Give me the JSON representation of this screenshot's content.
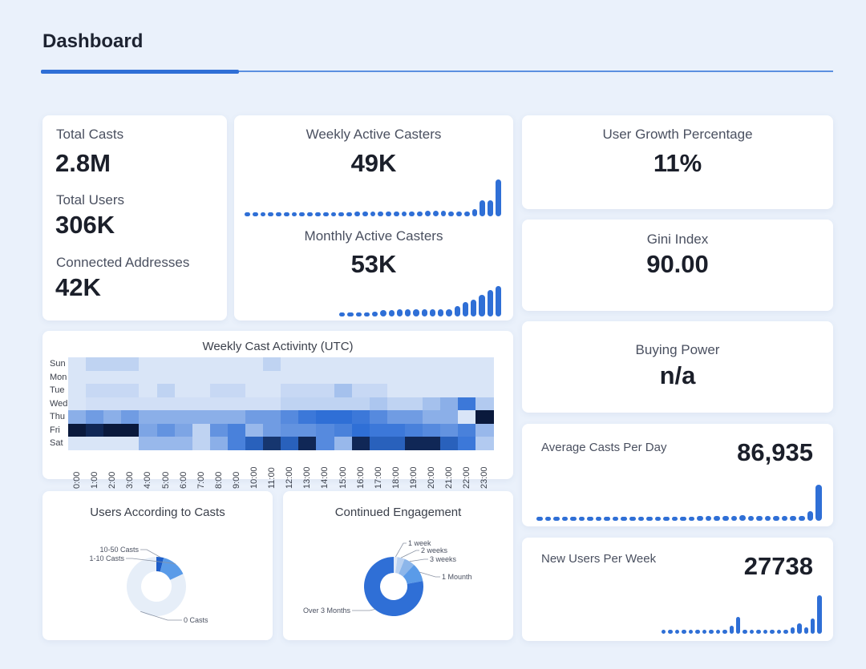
{
  "header": {
    "title": "Dashboard"
  },
  "totals": {
    "casts_label": "Total Casts",
    "casts_value": "2.8M",
    "users_label": "Total Users",
    "users_value": "306K",
    "addresses_label": "Connected Addresses",
    "addresses_value": "42K"
  },
  "wac": {
    "label": "Weekly Active Casters",
    "value": "49K",
    "trend": [
      4,
      4,
      4,
      4,
      4,
      4,
      4,
      4,
      4,
      4,
      4,
      4,
      4,
      5,
      6,
      6,
      6,
      6,
      6,
      6,
      6,
      6,
      6,
      7,
      7,
      7,
      6,
      6,
      6,
      9,
      20,
      20,
      46
    ]
  },
  "mac": {
    "label": "Monthly Active Casters",
    "value": "53K",
    "trend": [
      4,
      4,
      4,
      4,
      6,
      8,
      8,
      9,
      9,
      9,
      9,
      9,
      9,
      9,
      12,
      17,
      20,
      26,
      31,
      36
    ]
  },
  "growth": {
    "label": "User Growth Percentage",
    "value": "11%"
  },
  "gini": {
    "label": "Gini Index",
    "value": "90.00"
  },
  "buying": {
    "label": "Buying Power",
    "value": "n/a"
  },
  "avg_casts": {
    "label": "Average Casts Per Day",
    "value": "86,935",
    "trend": [
      3,
      3,
      3,
      3,
      3,
      3,
      3,
      3,
      3,
      4,
      4,
      4,
      4,
      4,
      5,
      5,
      5,
      5,
      5,
      6,
      6,
      6,
      6,
      6,
      7,
      6,
      6,
      6,
      6,
      6,
      6,
      6,
      12,
      45
    ]
  },
  "new_users": {
    "label": "New Users Per Week",
    "value": "27738",
    "trend": [
      4,
      4,
      4,
      4,
      4,
      4,
      4,
      4,
      4,
      4,
      10,
      20,
      4,
      4,
      4,
      4,
      4,
      4,
      4,
      8,
      12,
      8,
      18,
      46
    ]
  },
  "heatmap": {
    "title": "Weekly Cast Activinty (UTC)",
    "days": [
      "Sun",
      "Mon",
      "Tue",
      "Wed",
      "Thu",
      "Fri",
      "Sat"
    ],
    "hours": [
      "0:00",
      "1:00",
      "2:00",
      "3:00",
      "4:00",
      "5:00",
      "6:00",
      "7:00",
      "8:00",
      "9:00",
      "10:00",
      "11:00",
      "12:00",
      "13:00",
      "14:00",
      "15:00",
      "16:00",
      "17:00",
      "18:00",
      "19:00",
      "20:00",
      "21:00",
      "22:00",
      "23:00"
    ],
    "values": [
      [
        0.05,
        0.15,
        0.15,
        0.15,
        0.05,
        0.05,
        0.05,
        0.05,
        0.05,
        0.05,
        0.05,
        0.15,
        0.05,
        0.05,
        0.05,
        0.05,
        0.05,
        0.05,
        0.05,
        0.05,
        0.05,
        0.05,
        0.05,
        0.05
      ],
      [
        0.05,
        0.05,
        0.05,
        0.05,
        0.05,
        0.05,
        0.05,
        0.05,
        0.05,
        0.05,
        0.05,
        0.05,
        0.05,
        0.05,
        0.05,
        0.05,
        0.05,
        0.05,
        0.05,
        0.05,
        0.05,
        0.05,
        0.05,
        0.05
      ],
      [
        0.05,
        0.12,
        0.12,
        0.12,
        0.05,
        0.15,
        0.05,
        0.05,
        0.12,
        0.12,
        0.05,
        0.05,
        0.12,
        0.12,
        0.12,
        0.25,
        0.12,
        0.12,
        0.05,
        0.05,
        0.05,
        0.05,
        0.05,
        0.05
      ],
      [
        0.05,
        0.08,
        0.08,
        0.08,
        0.08,
        0.08,
        0.08,
        0.08,
        0.08,
        0.08,
        0.08,
        0.08,
        0.15,
        0.15,
        0.15,
        0.15,
        0.15,
        0.22,
        0.15,
        0.15,
        0.25,
        0.35,
        0.65,
        0.2
      ],
      [
        0.35,
        0.45,
        0.35,
        0.45,
        0.35,
        0.35,
        0.35,
        0.35,
        0.35,
        0.35,
        0.45,
        0.45,
        0.55,
        0.65,
        0.7,
        0.7,
        0.65,
        0.55,
        0.45,
        0.45,
        0.35,
        0.35,
        0.05,
        1.0
      ],
      [
        1.0,
        0.95,
        1.0,
        1.0,
        0.4,
        0.5,
        0.4,
        0.15,
        0.5,
        0.6,
        0.3,
        0.45,
        0.5,
        0.5,
        0.55,
        0.6,
        0.7,
        0.65,
        0.65,
        0.6,
        0.55,
        0.5,
        0.6,
        0.3
      ],
      [
        0.05,
        0.05,
        0.05,
        0.05,
        0.3,
        0.3,
        0.3,
        0.15,
        0.35,
        0.6,
        0.75,
        0.9,
        0.75,
        0.95,
        0.55,
        0.3,
        0.95,
        0.75,
        0.75,
        0.95,
        0.95,
        0.75,
        0.65,
        0.2
      ]
    ]
  },
  "users_casts": {
    "title": "Users According to Casts",
    "labels": [
      "10-50 Casts",
      "1-10 Casts",
      "0 Casts"
    ],
    "values": [
      4,
      14,
      82
    ],
    "colors": [
      "#1f5fc9",
      "#5a9be8",
      "#e6eef8"
    ]
  },
  "engagement": {
    "title": "Continued Engagement",
    "labels": [
      "1 week",
      "2 weeks",
      "3 weeks",
      "1 Mounth",
      "Over 3 Months"
    ],
    "values": [
      2,
      4,
      6,
      10,
      78
    ],
    "colors": [
      "#dfe9f7",
      "#b9d1f1",
      "#8cb6ea",
      "#5a9be8",
      "#2f6fd6"
    ]
  }
}
